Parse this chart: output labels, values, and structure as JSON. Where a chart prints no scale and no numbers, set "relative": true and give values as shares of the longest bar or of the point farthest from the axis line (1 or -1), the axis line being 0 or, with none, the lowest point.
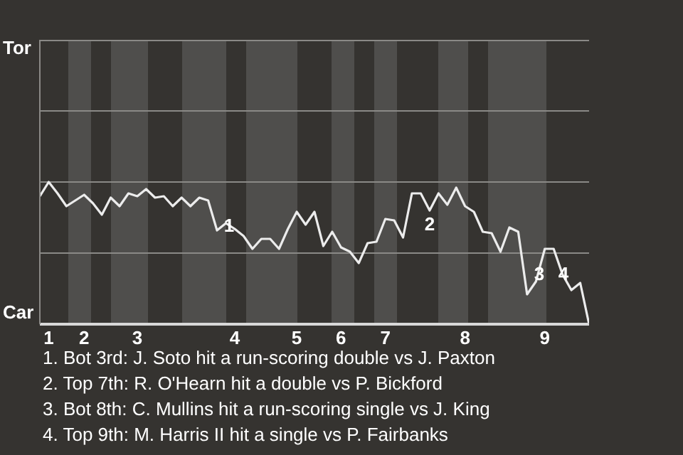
{
  "chart_data": {
    "type": "line",
    "relative": true,
    "categories": [
      null,
      "1",
      null,
      null,
      null,
      "2",
      null,
      null,
      null,
      null,
      null,
      "3",
      null,
      null,
      null,
      null,
      null,
      null,
      null,
      null,
      null,
      null,
      "4",
      null,
      null,
      null,
      null,
      null,
      null,
      "5",
      null,
      null,
      null,
      null,
      "6",
      null,
      null,
      null,
      null,
      "7",
      null,
      null,
      null,
      null,
      null,
      null,
      null,
      null,
      "8",
      null,
      null,
      null,
      null,
      null,
      null,
      null,
      null,
      "9",
      null,
      null,
      null,
      null,
      null
    ],
    "series": [
      {
        "color": "#ececec",
        "values": [
          0.9,
          1,
          0.92,
          0.83,
          0.87,
          0.91,
          0.85,
          0.77,
          0.89,
          0.83,
          0.92,
          0.9,
          0.95,
          0.89,
          0.9,
          0.83,
          0.89,
          0.83,
          0.89,
          0.87,
          0.66,
          0.71,
          0.67,
          0.62,
          0.53,
          0.6,
          0.6,
          0.53,
          0.67,
          0.79,
          0.7,
          0.79,
          0.55,
          0.65,
          0.54,
          0.51,
          0.43,
          0.57,
          0.58,
          0.74,
          0.73,
          0.61,
          0.92,
          0.92,
          0.8,
          0.92,
          0.84,
          0.96,
          0.83,
          0.79,
          0.65,
          0.64,
          0.51,
          0.68,
          0.65,
          0.21,
          0.3,
          0.53,
          0.53,
          0.35,
          0.24,
          0.29,
          0
        ]
      }
    ],
    "marker": "none",
    "line_style": "solid",
    "ref_lines": [
      {
        "axis": "y",
        "value": 0.5,
        "color": "#8a8986"
      },
      {
        "axis": "y",
        "value": 1,
        "color": "#8a8986"
      },
      {
        "axis": "y",
        "value": 1.5,
        "color": "#8a8986"
      }
    ],
    "annotations": [
      "Tor",
      "Car",
      "1",
      "2",
      "3",
      "4",
      "1. Bot 3rd: J. Soto hit a run-scoring double vs J. Paxton",
      "2. Top 7th: R. O'Hearn hit a double vs P. Bickford",
      "3. Bot 8th: C. Mullins hit a run-scoring single vs J. King",
      "4. Top 9th: M. Harris II hit a single vs P. Fairbanks"
    ]
  }
}
